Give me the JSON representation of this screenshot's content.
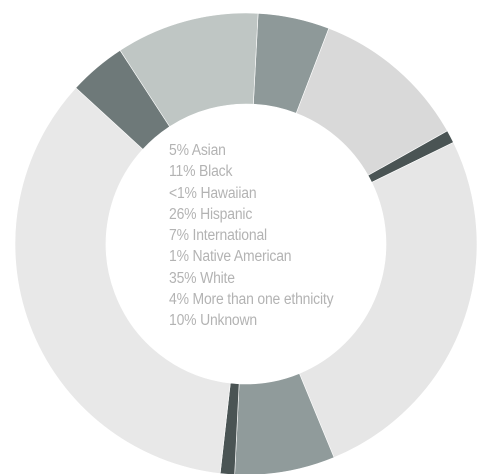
{
  "chart_data": {
    "type": "pie",
    "variant": "donut",
    "title": "",
    "legend_position": "center",
    "slices": [
      {
        "label": "5% Asian",
        "value": 5,
        "color": "#8e9999"
      },
      {
        "label": "11% Black",
        "value": 11,
        "color": "#d9d9d9"
      },
      {
        "label": "<1% Hawaiian",
        "value": 0.9,
        "color": "#4a5454"
      },
      {
        "label": "26% Hispanic",
        "value": 26,
        "color": "#e6e6e6"
      },
      {
        "label": "7% International",
        "value": 7,
        "color": "#909b9b"
      },
      {
        "label": "1% Native American",
        "value": 1,
        "color": "#4a5454"
      },
      {
        "label": "35% White",
        "value": 35,
        "color": "#e8e8e8"
      },
      {
        "label": "4% More than one ethnicity",
        "value": 4,
        "color": "#6e7979"
      },
      {
        "label": "10% Unknown",
        "value": 10,
        "color": "#bfc6c4"
      }
    ]
  }
}
